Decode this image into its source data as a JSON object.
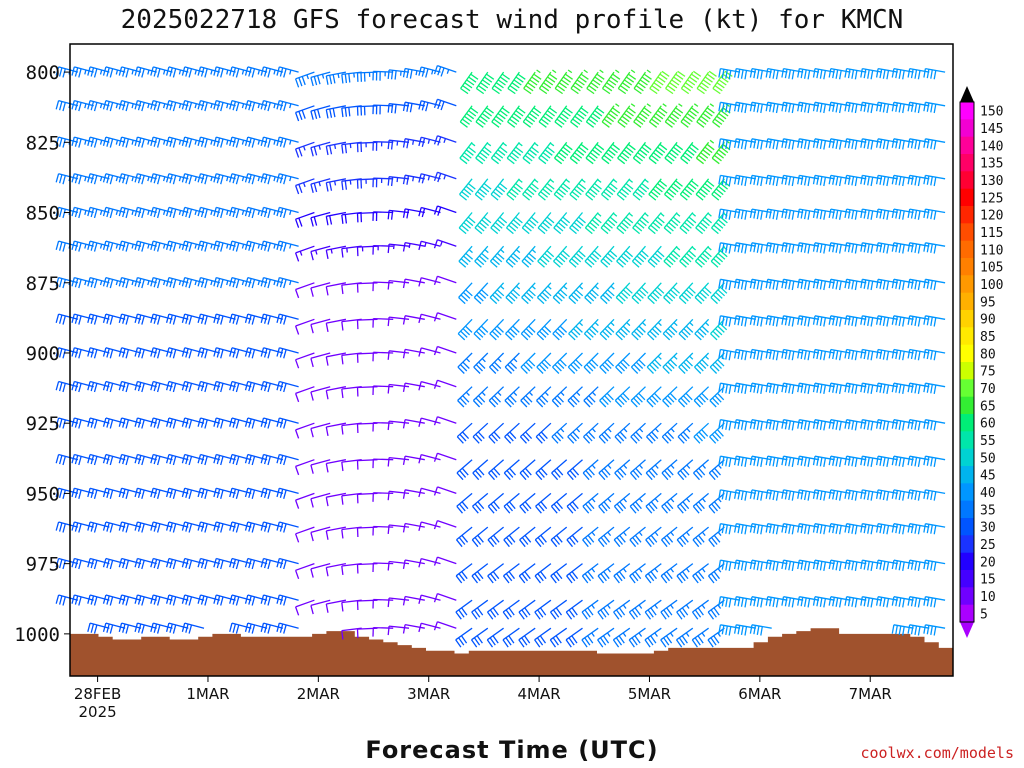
{
  "chart_data": {
    "type": "wind-barb-profile",
    "title": "2025022718 GFS forecast wind profile (kt) for KMCN",
    "xlabel": "Forecast Time (UTC)",
    "ylabel": "",
    "credit": "coolwx.com/models",
    "y_axis": {
      "scale": "pressure (hPa), inverted",
      "range": [
        1015,
        790
      ],
      "ticks": [
        "800",
        "825",
        "850",
        "875",
        "900",
        "925",
        "950",
        "975",
        "1000"
      ]
    },
    "x_axis": {
      "range": [
        "2025-02-27 18Z",
        "2025-03-07 18Z"
      ],
      "ticks": [
        {
          "label": "28FEB",
          "sublabel": "2025"
        },
        {
          "label": "1MAR",
          "sublabel": ""
        },
        {
          "label": "2MAR",
          "sublabel": ""
        },
        {
          "label": "3MAR",
          "sublabel": ""
        },
        {
          "label": "4MAR",
          "sublabel": ""
        },
        {
          "label": "5MAR",
          "sublabel": ""
        },
        {
          "label": "6MAR",
          "sublabel": ""
        },
        {
          "label": "7MAR",
          "sublabel": ""
        }
      ]
    },
    "colorbar": {
      "labels": [
        "150",
        "145",
        "140",
        "135",
        "130",
        "125",
        "120",
        "115",
        "110",
        "105",
        "100",
        "95",
        "90",
        "85",
        "80",
        "75",
        "70",
        "65",
        "60",
        "55",
        "50",
        "45",
        "40",
        "35",
        "30",
        "25",
        "20",
        "15",
        "10",
        "5"
      ],
      "colors": [
        "#ff00ff",
        "#f200d2",
        "#ff0099",
        "#ff0066",
        "#ff0033",
        "#ff0000",
        "#ff2600",
        "#ff4d00",
        "#ff6b00",
        "#ff8000",
        "#ff9900",
        "#ffb000",
        "#ffd200",
        "#ffea00",
        "#ffff00",
        "#ccff00",
        "#66ff33",
        "#33ee33",
        "#00ee77",
        "#00e6aa",
        "#00d2d2",
        "#00b4ee",
        "#0096ff",
        "#0078ff",
        "#0055ff",
        "#1a33ff",
        "#2200ff",
        "#4400ff",
        "#7000ff",
        "#aa00ff"
      ]
    },
    "surface_pressure_hpa": [
      1000,
      1000,
      1001,
      1002,
      1002,
      1001,
      1001,
      1002,
      1002,
      1001,
      1000,
      1000,
      1001,
      1001,
      1001,
      1001,
      1001,
      1000,
      999,
      999,
      1001,
      1002,
      1003,
      1004,
      1005,
      1006,
      1006,
      1007,
      1006,
      1006,
      1006,
      1006,
      1006,
      1006,
      1006,
      1006,
      1006,
      1007,
      1007,
      1007,
      1007,
      1006,
      1005,
      1005,
      1005,
      1005,
      1005,
      1005,
      1003,
      1001,
      1000,
      999,
      998,
      998,
      1000,
      1000,
      1000,
      1000,
      1000,
      1001,
      1003,
      1005
    ]
  }
}
